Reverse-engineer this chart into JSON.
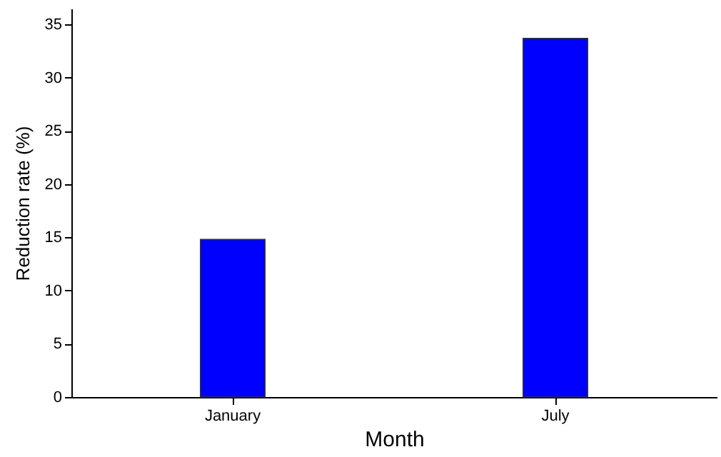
{
  "chart_data": {
    "type": "bar",
    "xlabel": "Month",
    "ylabel": "Reduction rate (%)",
    "categories": [
      "January",
      "July"
    ],
    "values": [
      14.8,
      33.7
    ],
    "color": "#0000ff",
    "ylim": [
      0,
      36.5
    ],
    "yticks": [
      0,
      5,
      10,
      15,
      20,
      25,
      30,
      35
    ],
    "grid": false
  }
}
